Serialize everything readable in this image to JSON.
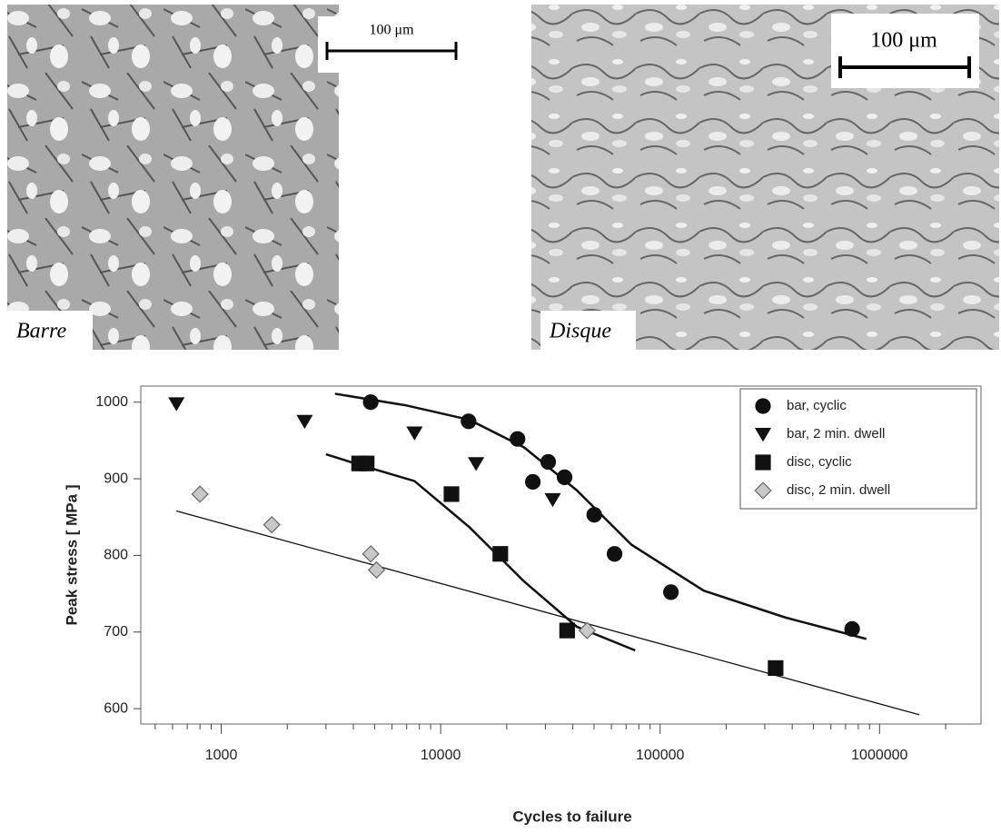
{
  "micrographs": [
    {
      "label": "Barre",
      "scale_bar": "100 μm"
    },
    {
      "label": "Disque",
      "scale_bar": "100 μm"
    }
  ],
  "chart_data": {
    "type": "scatter",
    "xlabel": "Cycles to failure",
    "ylabel": "Peak stress [ MPa ]",
    "xscale": "log",
    "xlim": [
      430,
      2900000
    ],
    "ylim": [
      580,
      1021
    ],
    "xticks": [
      1000,
      10000,
      100000,
      1000000
    ],
    "yticks": [
      600,
      700,
      800,
      900,
      1000
    ],
    "legend": "upper right",
    "series": [
      {
        "name": "bar, cyclic",
        "marker": "circle",
        "color": "#111111",
        "x": [
          4800,
          13400,
          22400,
          30900,
          36700,
          26300,
          50100,
          62000,
          112000,
          750000
        ],
        "values": [
          1000,
          975,
          952,
          922,
          902,
          896,
          853,
          802,
          752,
          704
        ]
      },
      {
        "name": "bar, 2 min. dwell",
        "marker": "triangle",
        "color": "#111111",
        "x": [
          625,
          2400,
          7600,
          14500,
          32400
        ],
        "values": [
          998,
          975,
          960,
          920,
          873
        ]
      },
      {
        "name": "disc, cyclic",
        "marker": "square",
        "color": "#111111",
        "x": [
          4250,
          4600,
          11200,
          18700,
          37700,
          336000
        ],
        "values": [
          920,
          920,
          880,
          802,
          702,
          653
        ]
      },
      {
        "name": "disc, 2 min. dwell",
        "marker": "diamond",
        "color": "#c8c8c8",
        "x": [
          800,
          1700,
          4800,
          5100,
          46500
        ],
        "values": [
          880,
          840,
          802,
          781,
          702
        ]
      }
    ],
    "fit_lines": [
      {
        "color": "#111111",
        "x": [
          3300,
          6900,
          13500,
          24000,
          41700,
          74000,
          158000,
          372000,
          870000
        ],
        "values": [
          1011,
          996,
          977,
          941,
          885,
          814,
          754,
          719,
          691
        ]
      },
      {
        "color": "#111111",
        "x": [
          3000,
          4300,
          7600,
          13500,
          24000,
          41700,
          77000
        ],
        "values": [
          932,
          918,
          897,
          837,
          766,
          707,
          676
        ]
      },
      {
        "color": "#111111",
        "x": [
          625,
          1520000
        ],
        "values": [
          858,
          592
        ]
      }
    ]
  }
}
